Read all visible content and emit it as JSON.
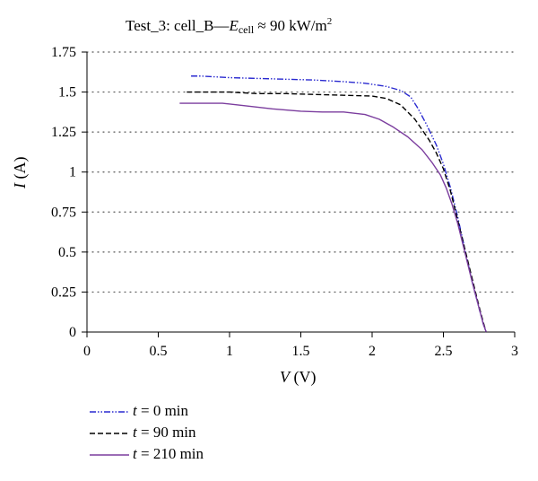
{
  "chart_data": {
    "type": "line",
    "title": {
      "prefix": "Test_3: cell_B—",
      "var": "E",
      "var_sub": "cell",
      "approx": " ≈ 90 kW/m",
      "sup": "2"
    },
    "xlabel": {
      "var": "V",
      "unit": " (V)"
    },
    "ylabel": {
      "var": "I",
      "unit": " (A)"
    },
    "xlim": [
      0,
      3
    ],
    "ylim": [
      0,
      1.75
    ],
    "x_ticks": [
      "0",
      "0.5",
      "1",
      "1.5",
      "2",
      "2.5",
      "3"
    ],
    "x_tick_values": [
      0,
      0.5,
      1,
      1.5,
      2,
      2.5,
      3
    ],
    "y_ticks": [
      "0",
      "0.25",
      "0.5",
      "0.75",
      "1",
      "1.25",
      "1.5",
      "1.75"
    ],
    "y_tick_values": [
      0,
      0.25,
      0.5,
      0.75,
      1,
      1.25,
      1.5,
      1.75
    ],
    "grid": "horizontal dotted",
    "legend_position": "bottom-left",
    "series": [
      {
        "name": "t = 0 min",
        "legend_var": "t",
        "legend_rest": " = 0 min",
        "color": "#2a2ad0",
        "dash": "dashdotdot",
        "points": [
          [
            0.73,
            1.6
          ],
          [
            0.8,
            1.6
          ],
          [
            0.9,
            1.595
          ],
          [
            1.0,
            1.59
          ],
          [
            1.2,
            1.585
          ],
          [
            1.4,
            1.58
          ],
          [
            1.6,
            1.575
          ],
          [
            1.8,
            1.565
          ],
          [
            1.95,
            1.555
          ],
          [
            2.1,
            1.535
          ],
          [
            2.2,
            1.51
          ],
          [
            2.27,
            1.47
          ],
          [
            2.32,
            1.4
          ],
          [
            2.38,
            1.3
          ],
          [
            2.45,
            1.17
          ],
          [
            2.5,
            1.05
          ],
          [
            2.55,
            0.9
          ],
          [
            2.6,
            0.72
          ],
          [
            2.65,
            0.52
          ],
          [
            2.7,
            0.32
          ],
          [
            2.75,
            0.15
          ],
          [
            2.78,
            0.05
          ],
          [
            2.8,
            0.0
          ]
        ]
      },
      {
        "name": "t = 90 min",
        "legend_var": "t",
        "legend_rest": " = 90 min",
        "color": "#000000",
        "dash": "dashed",
        "points": [
          [
            0.7,
            1.5
          ],
          [
            0.9,
            1.5
          ],
          [
            1.0,
            1.5
          ],
          [
            1.2,
            1.49
          ],
          [
            1.4,
            1.49
          ],
          [
            1.6,
            1.485
          ],
          [
            1.8,
            1.48
          ],
          [
            2.0,
            1.475
          ],
          [
            2.1,
            1.46
          ],
          [
            2.2,
            1.42
          ],
          [
            2.3,
            1.33
          ],
          [
            2.4,
            1.2
          ],
          [
            2.45,
            1.12
          ],
          [
            2.5,
            1.02
          ],
          [
            2.55,
            0.88
          ],
          [
            2.6,
            0.7
          ],
          [
            2.65,
            0.52
          ],
          [
            2.7,
            0.34
          ],
          [
            2.75,
            0.16
          ],
          [
            2.78,
            0.06
          ],
          [
            2.8,
            0.0
          ]
        ]
      },
      {
        "name": "t = 210 min",
        "legend_var": "t",
        "legend_rest": " = 210 min",
        "color": "#7b3d9e",
        "dash": "solid",
        "points": [
          [
            0.65,
            1.43
          ],
          [
            0.8,
            1.43
          ],
          [
            0.95,
            1.43
          ],
          [
            1.1,
            1.415
          ],
          [
            1.3,
            1.395
          ],
          [
            1.5,
            1.38
          ],
          [
            1.65,
            1.375
          ],
          [
            1.8,
            1.375
          ],
          [
            1.95,
            1.36
          ],
          [
            2.05,
            1.33
          ],
          [
            2.15,
            1.28
          ],
          [
            2.25,
            1.22
          ],
          [
            2.35,
            1.14
          ],
          [
            2.42,
            1.06
          ],
          [
            2.48,
            0.98
          ],
          [
            2.52,
            0.9
          ],
          [
            2.56,
            0.8
          ],
          [
            2.6,
            0.68
          ],
          [
            2.65,
            0.5
          ],
          [
            2.7,
            0.32
          ],
          [
            2.75,
            0.15
          ],
          [
            2.78,
            0.05
          ],
          [
            2.8,
            0.0
          ]
        ]
      }
    ]
  }
}
